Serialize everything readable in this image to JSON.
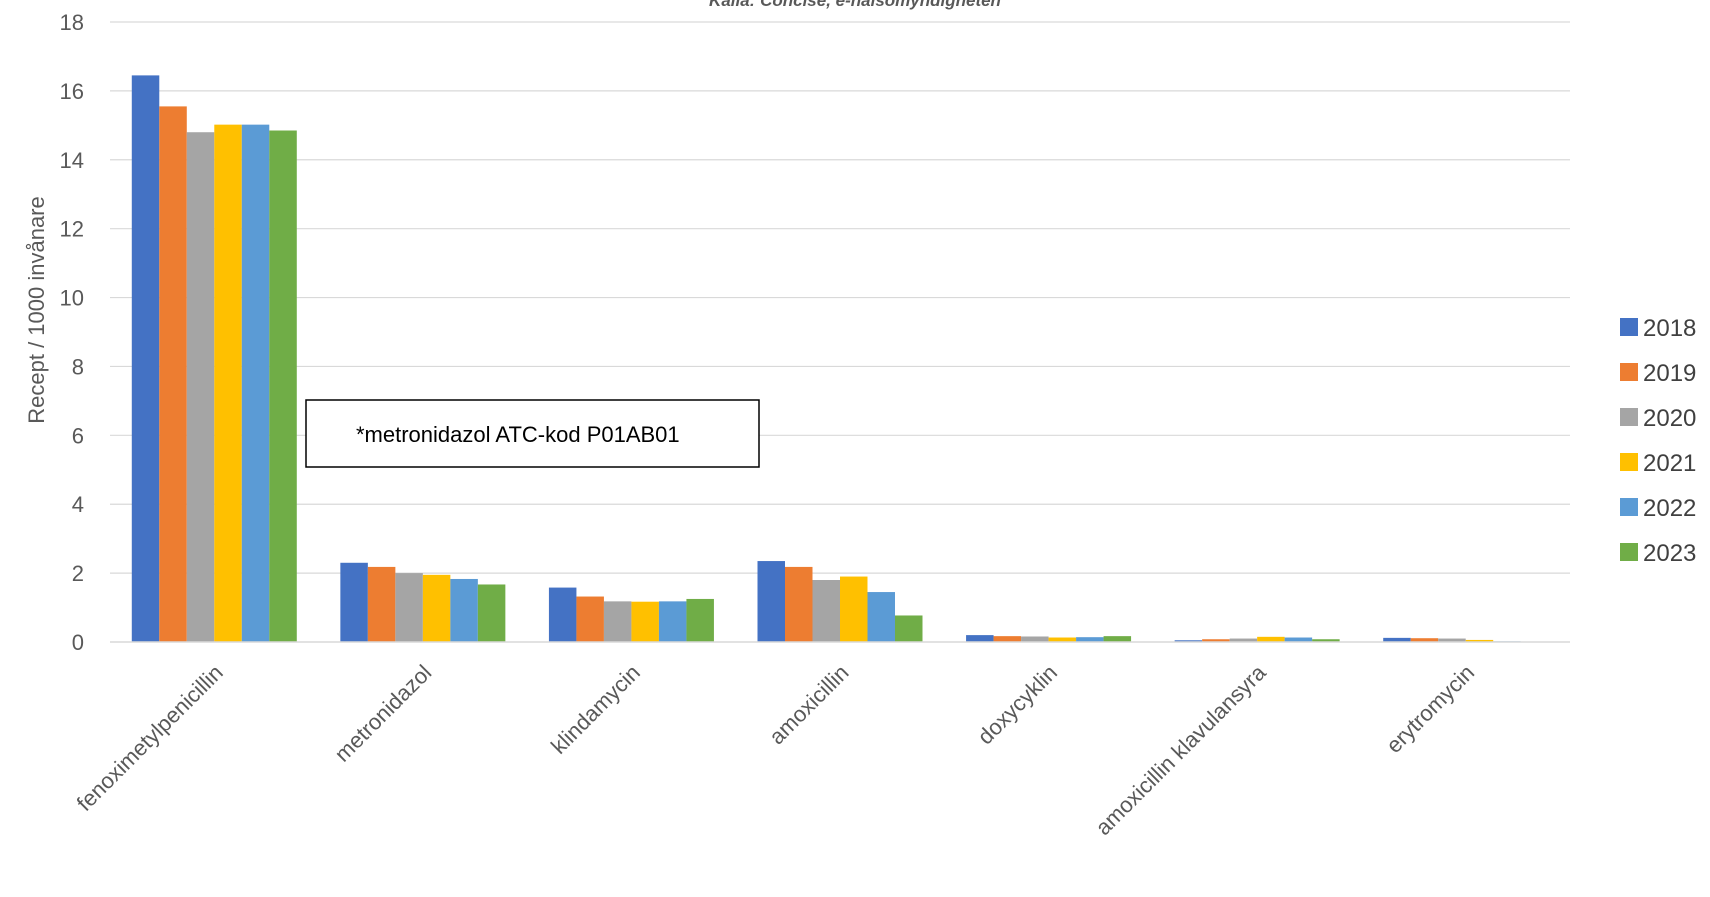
{
  "chart_data": {
    "type": "bar",
    "source_note": "Källa: Concise, e-hälsomyndigheten",
    "ylabel": "Recept / 1000 invånare",
    "xlabel": "",
    "ylim": [
      0,
      18
    ],
    "yticks": [
      0,
      2,
      4,
      6,
      8,
      10,
      12,
      14,
      16,
      18
    ],
    "grid": true,
    "legend_position": "right",
    "categories": [
      "fenoximetylpenicillin",
      "metronidazol",
      "klindamycin",
      "amoxicillin",
      "doxycyklin",
      "amoxicillin klavulansyra",
      "erytromycin"
    ],
    "series": [
      {
        "name": "2018",
        "color": "#4472C4",
        "values": [
          16.45,
          2.3,
          1.58,
          2.35,
          0.2,
          0.05,
          0.12
        ]
      },
      {
        "name": "2019",
        "color": "#ED7D31",
        "values": [
          15.55,
          2.18,
          1.32,
          2.18,
          0.17,
          0.08,
          0.11
        ]
      },
      {
        "name": "2020",
        "color": "#A5A5A5",
        "values": [
          14.8,
          2.0,
          1.18,
          1.8,
          0.16,
          0.1,
          0.1
        ]
      },
      {
        "name": "2021",
        "color": "#FFC000",
        "values": [
          15.02,
          1.95,
          1.17,
          1.9,
          0.13,
          0.15,
          0.06
        ]
      },
      {
        "name": "2022",
        "color": "#5B9BD5",
        "values": [
          15.02,
          1.83,
          1.18,
          1.45,
          0.14,
          0.13,
          0.02
        ]
      },
      {
        "name": "2023",
        "color": "#70AD47",
        "values": [
          14.85,
          1.67,
          1.25,
          0.77,
          0.17,
          0.08,
          0.0
        ]
      }
    ],
    "annotation": "*metronidazol ATC-kod P01AB01"
  }
}
